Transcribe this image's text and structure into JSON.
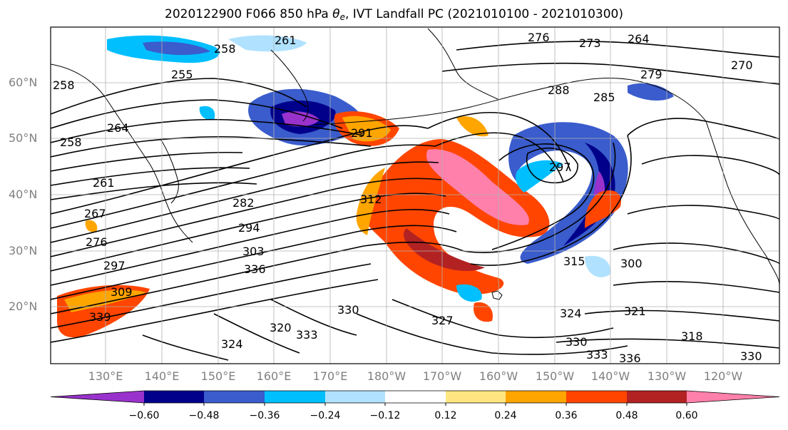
{
  "title": {
    "prefix": "2020122900 F066 850 hPa ",
    "theta": "θ",
    "theta_sub": "e",
    "suffix": ", IVT Landfall PC (2021010100 - 2021010300)"
  },
  "map": {
    "lat_labels": [
      "60°N",
      "50°N",
      "40°N",
      "30°N",
      "20°N"
    ],
    "lon_labels": [
      "130°E",
      "140°E",
      "150°E",
      "160°E",
      "170°E",
      "180°W",
      "170°W",
      "160°W",
      "150°W",
      "140°W",
      "130°W",
      "120°W"
    ],
    "contour_labels": [
      "276",
      "273",
      "264",
      "270",
      "279",
      "285",
      "288",
      "258",
      "261",
      "255",
      "258",
      "258",
      "264",
      "261",
      "267",
      "276",
      "282",
      "294",
      "291",
      "297",
      "303",
      "312",
      "309",
      "336",
      "330",
      "327",
      "324",
      "321",
      "318",
      "315",
      "300",
      "297",
      "330",
      "333",
      "336",
      "330",
      "339",
      "333",
      "324",
      "320"
    ]
  },
  "colorbar": {
    "colors": [
      "#9932cc",
      "#00008b",
      "#3a5ccc",
      "#00bfff",
      "#b0e2ff",
      "#ffffff",
      "#ffe680",
      "#ffa500",
      "#ff4500",
      "#b22222",
      "#ff80aa"
    ],
    "tick_labels": [
      "−0.60",
      "−0.48",
      "−0.36",
      "−0.24",
      "−0.12",
      "0.12",
      "0.24",
      "0.36",
      "0.48",
      "0.60"
    ]
  },
  "colors": {
    "contour": "#000000",
    "grid": "#b0b0b0",
    "tick_label": "#808080"
  }
}
